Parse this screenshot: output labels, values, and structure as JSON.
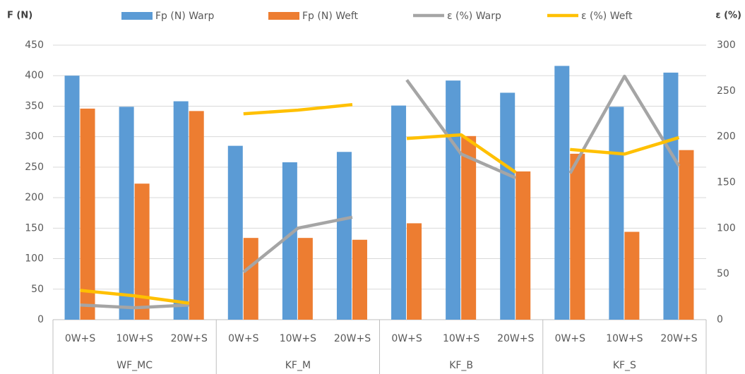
{
  "chart_data": {
    "type": "bar-line",
    "ylabel": "F (N)",
    "y2label": "ε (%)",
    "categories": [
      "0W+S",
      "10W+S",
      "20W+S",
      "0W+S",
      "10W+S",
      "20W+S",
      "0W+S",
      "10W+S",
      "20W+S",
      "0W+S",
      "10W+S",
      "20W+S"
    ],
    "groups": [
      "WF_MC",
      "KF_M",
      "KF_B",
      "KF_S"
    ],
    "series": [
      {
        "name": "Fp (N) Warp",
        "type": "bar",
        "color": "#5b9bd5",
        "values": [
          400,
          349,
          358,
          285,
          258,
          275,
          351,
          392,
          372,
          416,
          349,
          405
        ]
      },
      {
        "name": "Fp (N) Weft",
        "type": "bar",
        "color": "#ed7d31",
        "values": [
          346,
          223,
          342,
          134,
          134,
          131,
          158,
          301,
          243,
          272,
          144,
          278
        ]
      },
      {
        "name": "ε (%) Warp",
        "type": "line",
        "axis": "y2",
        "color": "#a5a5a5",
        "values": [
          16,
          13,
          16,
          52,
          100,
          112,
          262,
          181,
          155,
          160,
          266,
          168
        ]
      },
      {
        "name": "ε (%) Weft",
        "type": "line",
        "axis": "y2",
        "color": "#ffc000",
        "values": [
          32,
          26,
          18,
          225,
          229,
          235,
          198,
          202,
          161,
          186,
          181,
          199
        ]
      }
    ],
    "ylim": [
      0,
      450
    ],
    "yticks": [
      0,
      50,
      100,
      150,
      200,
      250,
      300,
      350,
      400,
      450
    ],
    "y2lim": [
      0,
      300
    ],
    "y2ticks": [
      0,
      50,
      100,
      150,
      200,
      250,
      300
    ],
    "grid": true,
    "legend": "top"
  }
}
